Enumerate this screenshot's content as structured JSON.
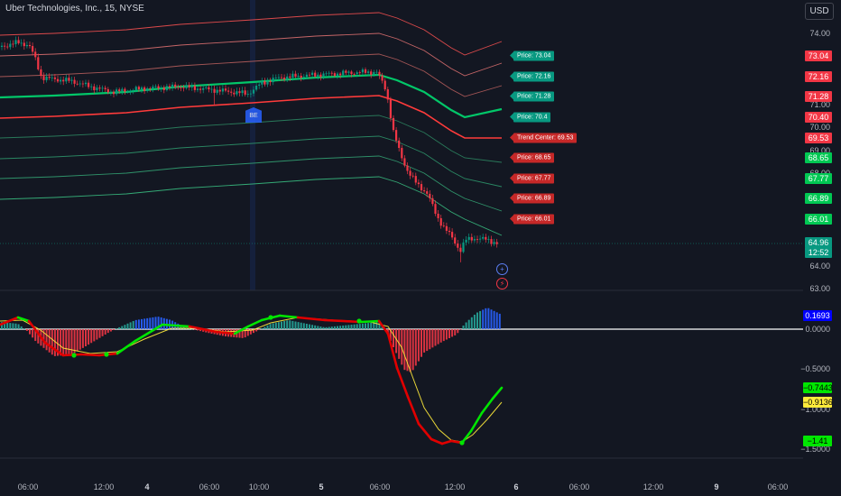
{
  "header": {
    "title": "Uber Technologies, Inc., 15, NYSE",
    "currency": "USD"
  },
  "colors": {
    "background": "#131722",
    "bull": "#089981",
    "bear": "#f23645",
    "trend_green": "#00e676",
    "signal_yellow": "#ffeb3b",
    "macd_blue": "#2962ff"
  },
  "price_axis": {
    "ticks": [
      "74.00",
      "71.00",
      "70.00",
      "69.00",
      "68.00",
      "64.00",
      "63.00"
    ],
    "badges": [
      {
        "value": "73.04",
        "color": "#f23645"
      },
      {
        "value": "72.16",
        "color": "#f23645"
      },
      {
        "value": "71.28",
        "color": "#f23645"
      },
      {
        "value": "70.40",
        "color": "#f23645"
      },
      {
        "value": "69.53",
        "color": "#f23645"
      },
      {
        "value": "68.65",
        "color": "#00c853"
      },
      {
        "value": "67.77",
        "color": "#00c853"
      },
      {
        "value": "66.89",
        "color": "#00c853"
      },
      {
        "value": "66.01",
        "color": "#00c853"
      },
      {
        "value": "64.96",
        "color": "#089981"
      },
      {
        "value": "12:52",
        "color": "#089981"
      }
    ]
  },
  "channel_labels": [
    {
      "text": "Price: 73.04",
      "color": "#089981"
    },
    {
      "text": "Price: 72.16",
      "color": "#089981"
    },
    {
      "text": "Price: 71.28",
      "color": "#089981"
    },
    {
      "text": "Price: 70.4",
      "color": "#089981"
    },
    {
      "text": "Trend Center: 69.53",
      "color": "#c62828"
    },
    {
      "text": "Price: 68.65",
      "color": "#c62828"
    },
    {
      "text": "Price: 67.77",
      "color": "#c62828"
    },
    {
      "text": "Price: 66.89",
      "color": "#c62828"
    },
    {
      "text": "Price: 66.01",
      "color": "#c62828"
    }
  ],
  "marker": {
    "label": "BE"
  },
  "indicator_axis": {
    "ticks": [
      "0.0000",
      "−0.5000",
      "−1.0000",
      "−1.5000"
    ],
    "badges": [
      {
        "value": "0.1693",
        "color": "#0000ff",
        "text_color": "#ffffff"
      },
      {
        "value": "−0.7443",
        "color": "#00e600",
        "text_color": "#000000"
      },
      {
        "value": "−0.9136",
        "color": "#ffeb3b",
        "text_color": "#000000"
      },
      {
        "value": "−1.41",
        "color": "#00e600",
        "text_color": "#000000"
      }
    ]
  },
  "time_axis": {
    "labels": [
      {
        "text": "06:00",
        "bold": false
      },
      {
        "text": "12:00",
        "bold": false
      },
      {
        "text": "4",
        "bold": true
      },
      {
        "text": "06:00",
        "bold": false
      },
      {
        "text": "10:00",
        "bold": false
      },
      {
        "text": "5",
        "bold": true
      },
      {
        "text": "06:00",
        "bold": false
      },
      {
        "text": "12:00",
        "bold": false
      },
      {
        "text": "6",
        "bold": true
      },
      {
        "text": "06:00",
        "bold": false
      },
      {
        "text": "12:00",
        "bold": false
      },
      {
        "text": "9",
        "bold": true
      },
      {
        "text": "06:00",
        "bold": false
      }
    ]
  }
}
